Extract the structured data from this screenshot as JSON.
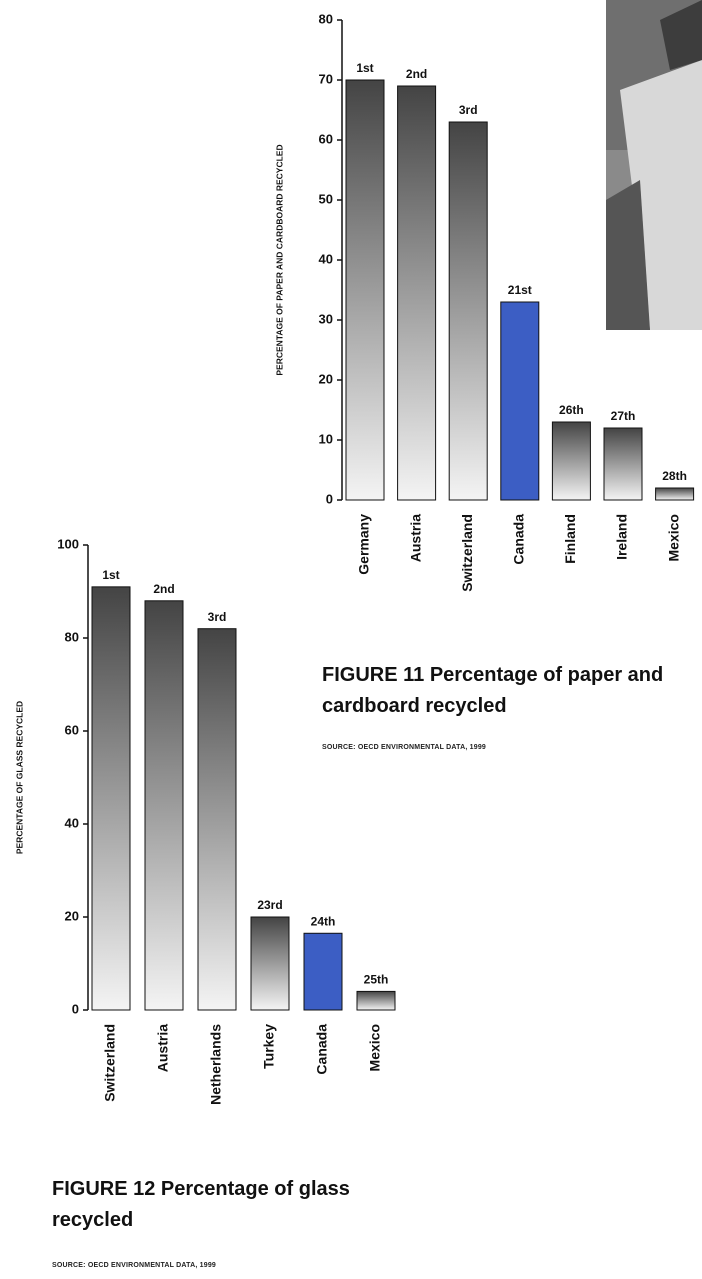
{
  "chart_data": [
    {
      "type": "bar",
      "title": "FIGURE 11  Percentage of paper and cardboard recycled",
      "source": "SOURCE: OECD ENVIRONMENTAL DATA, 1999",
      "y_label": "PERCENTAGE OF PAPER AND CARDBOARD RECYCLED",
      "categories": [
        "Germany",
        "Austria",
        "Switzerland",
        "Canada",
        "Finland",
        "Ireland",
        "Mexico"
      ],
      "values": [
        70,
        69,
        63,
        33,
        13,
        12,
        2
      ],
      "annotations": [
        "1st",
        "2nd",
        "3rd",
        "21st",
        "26th",
        "27th",
        "28th"
      ],
      "colors": [
        "#444444",
        "#444444",
        "#444444",
        "#3c5ec4",
        "#444444",
        "#444444",
        "#444444"
      ],
      "ylim": [
        0,
        80
      ],
      "yticks": [
        0,
        10,
        20,
        30,
        40,
        50,
        60,
        70,
        80
      ]
    },
    {
      "type": "bar",
      "title": "FIGURE 12  Percentage of glass recycled",
      "source": "SOURCE: OECD ENVIRONMENTAL DATA, 1999",
      "y_label": "PERCENTAGE OF GLASS RECYCLED",
      "categories": [
        "Switzerland",
        "Austria",
        "Netherlands",
        "Turkey",
        "Canada",
        "Mexico"
      ],
      "values": [
        91,
        88,
        82,
        20,
        16.5,
        4
      ],
      "annotations": [
        "1st",
        "2nd",
        "3rd",
        "23rd",
        "24th",
        "25th"
      ],
      "colors": [
        "#444444",
        "#444444",
        "#444444",
        "#444444",
        "#3c5ec4",
        "#444444"
      ],
      "ylim": [
        0,
        100
      ],
      "yticks": [
        0,
        20,
        40,
        60,
        80,
        100
      ]
    }
  ]
}
